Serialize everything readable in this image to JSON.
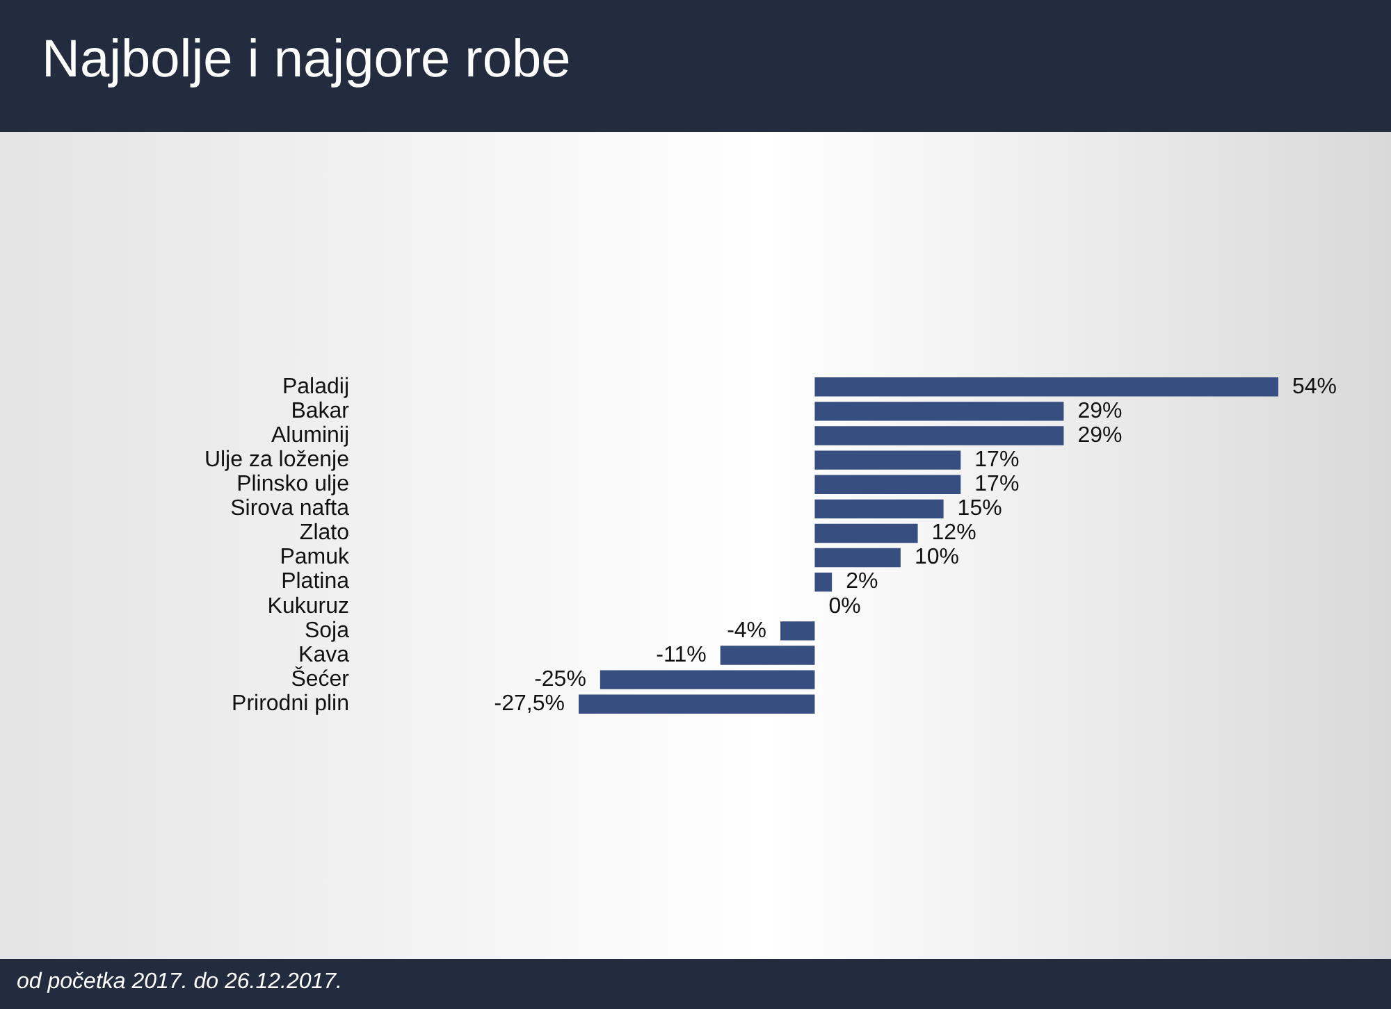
{
  "chart_data": {
    "type": "bar",
    "orientation": "horizontal",
    "title": "Najbolje i najgore robe",
    "categories": [
      "Paladij",
      "Bakar",
      "Aluminij",
      "Ulje za loženje",
      "Plinsko ulje",
      "Sirova nafta",
      "Zlato",
      "Pamuk",
      "Platina",
      "Kukuruz",
      "Soja",
      "Kava",
      "Šećer",
      "Prirodni plin"
    ],
    "values": [
      54,
      29,
      29,
      17,
      17,
      15,
      12,
      10,
      2,
      0,
      -4,
      -11,
      -25,
      -27.5
    ],
    "value_labels": [
      "54%",
      "29%",
      "29%",
      "17%",
      "17%",
      "15%",
      "12%",
      "10%",
      "2%",
      "0%",
      "-4%",
      "-11%",
      "-25%",
      "-27,5%"
    ],
    "color": "#374e80",
    "grid": false,
    "legend": false,
    "tick_labels": "y",
    "annotations": [
      "od početka 2017. do 26.12.2017."
    ]
  }
}
